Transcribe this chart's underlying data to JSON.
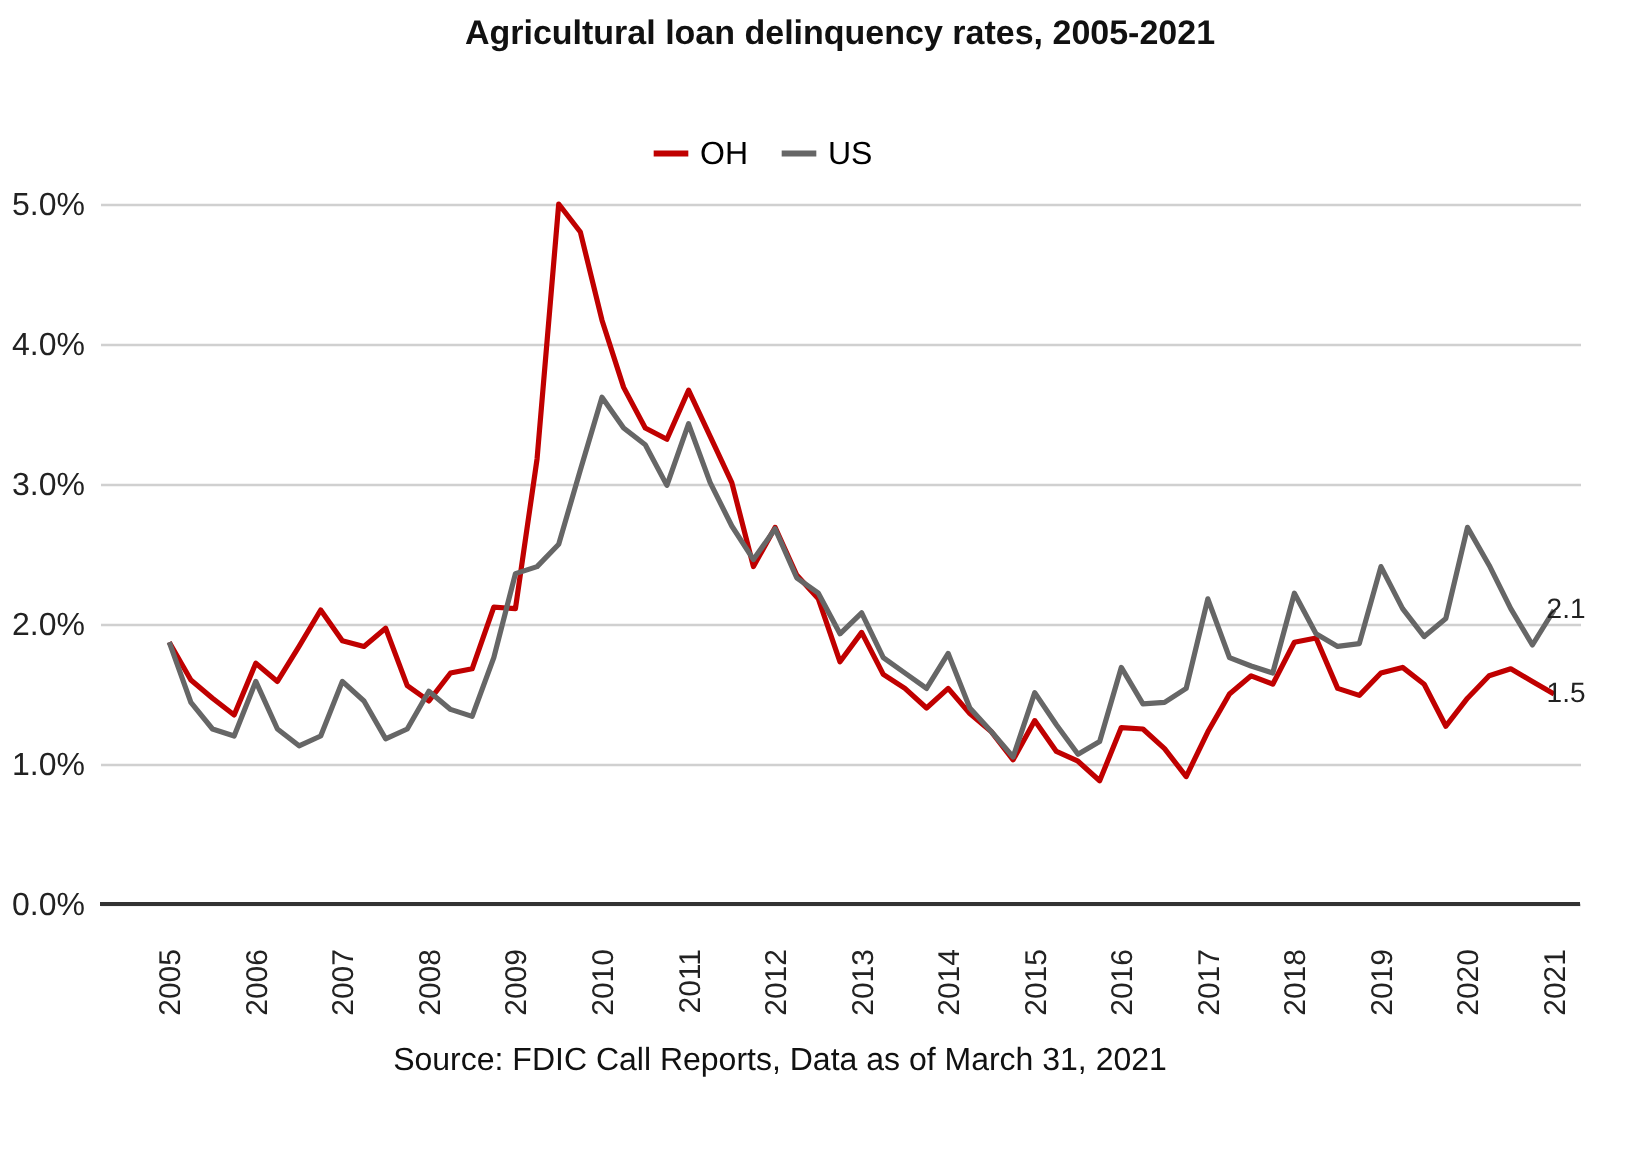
{
  "chart_data": {
    "type": "line",
    "title": "Agricultural loan delinquency rates, 2005-2021",
    "x": [
      2005,
      2005.25,
      2005.5,
      2005.75,
      2006,
      2006.25,
      2006.5,
      2006.75,
      2007,
      2007.25,
      2007.5,
      2007.75,
      2008,
      2008.25,
      2008.5,
      2008.75,
      2009,
      2009.25,
      2009.5,
      2009.75,
      2010,
      2010.25,
      2010.5,
      2010.75,
      2011,
      2011.25,
      2011.5,
      2011.75,
      2012,
      2012.25,
      2012.5,
      2012.75,
      2013,
      2013.25,
      2013.5,
      2013.75,
      2014,
      2014.25,
      2014.5,
      2014.75,
      2015,
      2015.25,
      2015.5,
      2015.75,
      2016,
      2016.25,
      2016.5,
      2016.75,
      2017,
      2017.25,
      2017.5,
      2017.75,
      2018,
      2018.25,
      2018.5,
      2018.75,
      2019,
      2019.25,
      2019.5,
      2019.75,
      2020,
      2020.25,
      2020.5,
      2020.75,
      2021
    ],
    "series": [
      {
        "name": "OH",
        "color": "#c00000",
        "values": [
          1.87,
          1.6,
          1.47,
          1.35,
          1.72,
          1.59,
          1.84,
          2.1,
          1.88,
          1.84,
          1.97,
          1.56,
          1.45,
          1.65,
          1.68,
          2.12,
          2.11,
          3.18,
          5.0,
          4.8,
          4.17,
          3.69,
          3.4,
          3.32,
          3.67,
          3.34,
          3.01,
          2.41,
          2.69,
          2.35,
          2.18,
          1.73,
          1.94,
          1.64,
          1.54,
          1.4,
          1.54,
          1.36,
          1.23,
          1.03,
          1.31,
          1.09,
          1.02,
          0.88,
          1.26,
          1.25,
          1.11,
          0.91,
          1.23,
          1.5,
          1.63,
          1.57,
          1.87,
          1.9,
          1.54,
          1.49,
          1.65,
          1.69,
          1.57,
          1.27,
          1.47,
          1.63,
          1.68,
          1.59,
          1.5
        ],
        "value_labels": [
          null,
          null,
          null,
          null,
          null,
          null,
          null,
          null,
          null,
          null,
          null,
          null,
          null,
          null,
          null,
          null,
          null,
          null,
          null,
          null,
          null,
          null,
          null,
          null,
          null,
          null,
          null,
          null,
          null,
          null,
          null,
          null,
          null,
          null,
          null,
          null,
          null,
          null,
          null,
          null,
          null,
          null,
          null,
          null,
          null,
          null,
          null,
          null,
          null,
          null,
          null,
          null,
          null,
          null,
          null,
          null,
          null,
          null,
          null,
          null,
          null,
          null,
          null,
          null,
          "1.5"
        ]
      },
      {
        "name": "US",
        "color": "#666666",
        "values": [
          1.87,
          1.44,
          1.25,
          1.2,
          1.59,
          1.25,
          1.13,
          1.2,
          1.59,
          1.45,
          1.18,
          1.25,
          1.52,
          1.39,
          1.34,
          1.76,
          2.36,
          2.41,
          2.57,
          3.1,
          3.62,
          3.4,
          3.28,
          2.99,
          3.43,
          3.01,
          2.7,
          2.46,
          2.68,
          2.33,
          2.22,
          1.93,
          2.08,
          1.76,
          1.65,
          1.54,
          1.79,
          1.4,
          1.23,
          1.05,
          1.51,
          1.28,
          1.07,
          1.16,
          1.69,
          1.43,
          1.44,
          1.54,
          2.18,
          1.76,
          1.7,
          1.65,
          2.22,
          1.93,
          1.84,
          1.86,
          2.41,
          2.11,
          1.91,
          2.04,
          2.69,
          2.42,
          2.11,
          1.85,
          2.1
        ],
        "value_labels": [
          null,
          null,
          null,
          null,
          null,
          null,
          null,
          null,
          null,
          null,
          null,
          null,
          null,
          null,
          null,
          null,
          null,
          null,
          null,
          null,
          null,
          null,
          null,
          null,
          null,
          null,
          null,
          null,
          null,
          null,
          null,
          null,
          null,
          null,
          null,
          null,
          null,
          null,
          null,
          null,
          null,
          null,
          null,
          null,
          null,
          null,
          null,
          null,
          null,
          null,
          null,
          null,
          null,
          null,
          null,
          null,
          null,
          null,
          null,
          null,
          null,
          null,
          null,
          null,
          "2.1"
        ]
      }
    ],
    "xlim": [
      2004.2,
      2021.3
    ],
    "xticks": [
      2005,
      2006,
      2007,
      2008,
      2009,
      2010,
      2011,
      2012,
      2013,
      2014,
      2015,
      2016,
      2017,
      2018,
      2019,
      2020,
      2021
    ],
    "ylim": [
      0,
      5
    ],
    "yticks": [
      {
        "value": 0,
        "label": "0.0%"
      },
      {
        "value": 1,
        "label": "1.0%"
      },
      {
        "value": 2,
        "label": "2.0%"
      },
      {
        "value": 3,
        "label": "3.0%"
      },
      {
        "value": 4,
        "label": "4.0%"
      },
      {
        "value": 5,
        "label": "5.0%"
      }
    ],
    "grid": "y",
    "legend": "top",
    "marker": "none",
    "line_style": "solid",
    "annotations": [
      "Source: FDIC Call Reports, Data as of March 31, 2021"
    ]
  }
}
